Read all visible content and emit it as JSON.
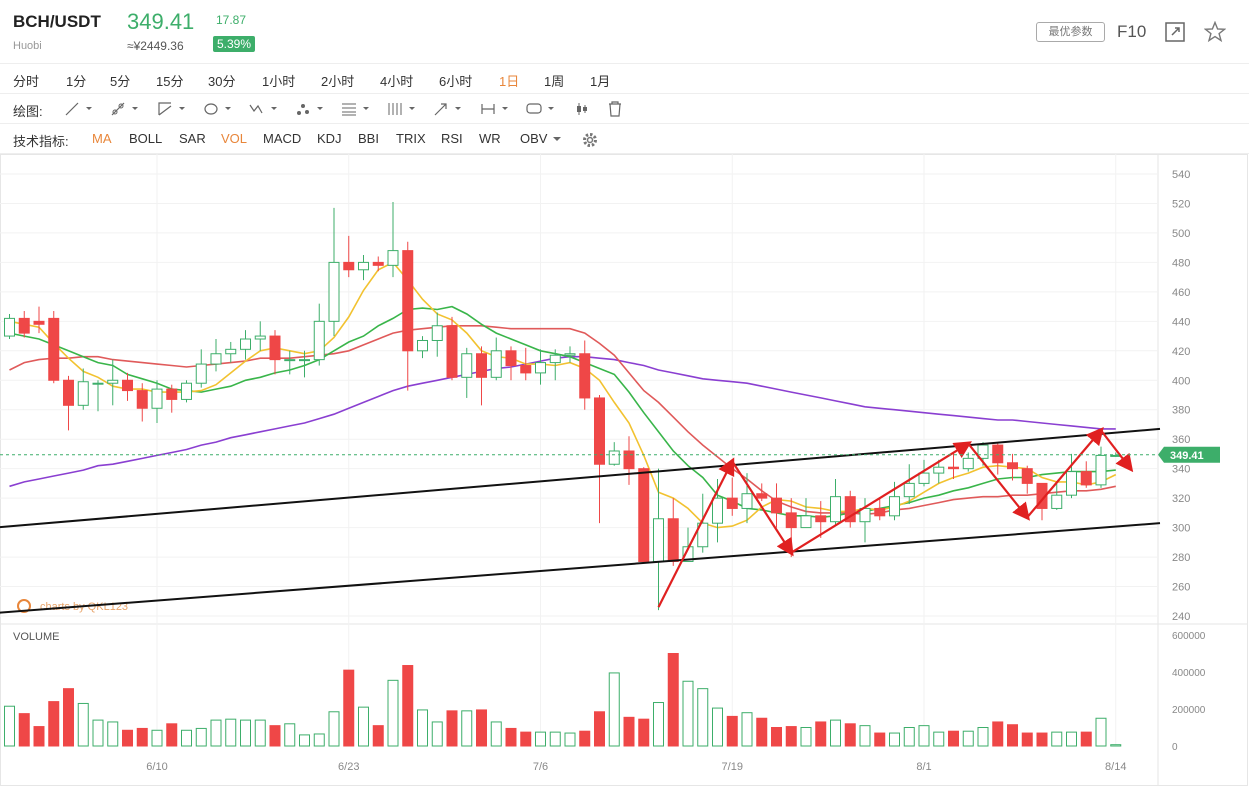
{
  "header": {
    "pair": "BCH/USDT",
    "exchange": "Huobi",
    "price": "349.41",
    "change": "17.87",
    "cny_price": "≈¥2449.36",
    "change_pct": "5.39%",
    "best_params_label": "最优参数",
    "f10_label": "F10",
    "colors": {
      "up": "#3dae6a",
      "down": "#ef4747"
    }
  },
  "intervals": {
    "items": [
      "分时",
      "1分",
      "5分",
      "15分",
      "30分",
      "1小时",
      "2小时",
      "4小时",
      "6小时",
      "1日",
      "1周",
      "1月"
    ],
    "active": "1日"
  },
  "drawing": {
    "label": "绘图:"
  },
  "indicators": {
    "label": "技术指标:",
    "items": [
      "MA",
      "BOLL",
      "SAR",
      "VOL",
      "MACD",
      "KDJ",
      "BBI",
      "TRIX",
      "RSI",
      "WR",
      "OBV"
    ],
    "active": [
      "MA",
      "VOL"
    ]
  },
  "chart_data": {
    "type": "candlestick",
    "title": "BCH/USDT 1日",
    "watermark": "charts by QKL123",
    "y_ticks": [
      240,
      260,
      280,
      300,
      320,
      340,
      360,
      380,
      400,
      420,
      440,
      460,
      480,
      500,
      520,
      540
    ],
    "ylim": [
      232,
      548
    ],
    "x_ticks": [
      {
        "label": "6/10",
        "index": 10
      },
      {
        "label": "6/23",
        "index": 23
      },
      {
        "label": "7/6",
        "index": 36
      },
      {
        "label": "7/19",
        "index": 49
      },
      {
        "label": "8/1",
        "index": 62
      },
      {
        "label": "8/14",
        "index": 75
      }
    ],
    "current_price_label": "349.41",
    "current_price": 349.41,
    "candles": [
      [
        430,
        442,
        445,
        428
      ],
      [
        442,
        432,
        447,
        429
      ],
      [
        440,
        438,
        450,
        432
      ],
      [
        442,
        400,
        447,
        398
      ],
      [
        400,
        383,
        403,
        366
      ],
      [
        383,
        399,
        408,
        380
      ],
      [
        398,
        398,
        400,
        379
      ],
      [
        398,
        400,
        414,
        383
      ],
      [
        400,
        393,
        405,
        386
      ],
      [
        393,
        381,
        398,
        372
      ],
      [
        381,
        394,
        400,
        371
      ],
      [
        394,
        387,
        397,
        378
      ],
      [
        387,
        398,
        400,
        385
      ],
      [
        398,
        411,
        421,
        395
      ],
      [
        411,
        418,
        428,
        406
      ],
      [
        418,
        421,
        426,
        412
      ],
      [
        421,
        428,
        434,
        414
      ],
      [
        428,
        430,
        440,
        420
      ],
      [
        430,
        414,
        434,
        404
      ],
      [
        414,
        414,
        420,
        404
      ],
      [
        414,
        414,
        420,
        402
      ],
      [
        414,
        440,
        452,
        410
      ],
      [
        440,
        480,
        517,
        430
      ],
      [
        480,
        475,
        498,
        470
      ],
      [
        475,
        480,
        485,
        468
      ],
      [
        480,
        478,
        484,
        474
      ],
      [
        478,
        488,
        521,
        470
      ],
      [
        488,
        420,
        494,
        393
      ],
      [
        420,
        427,
        430,
        415
      ],
      [
        427,
        437,
        446,
        416
      ],
      [
        437,
        402,
        443,
        400
      ],
      [
        402,
        418,
        422,
        388
      ],
      [
        418,
        402,
        423,
        383
      ],
      [
        402,
        420,
        429,
        400
      ],
      [
        420,
        410,
        423,
        400
      ],
      [
        410,
        405,
        422,
        400
      ],
      [
        405,
        412,
        421,
        397
      ],
      [
        412,
        417,
        421,
        400
      ],
      [
        417,
        418,
        423,
        412
      ],
      [
        418,
        388,
        427,
        380
      ],
      [
        388,
        343,
        390,
        303
      ],
      [
        343,
        352,
        358,
        342
      ],
      [
        352,
        340,
        362,
        329
      ],
      [
        340,
        277,
        341,
        277
      ],
      [
        277,
        306,
        340,
        244
      ],
      [
        306,
        277,
        320,
        274
      ],
      [
        277,
        287,
        300,
        283
      ],
      [
        287,
        303,
        323,
        283
      ],
      [
        303,
        320,
        333,
        290
      ],
      [
        320,
        313,
        334,
        308
      ],
      [
        313,
        323,
        337,
        303
      ],
      [
        323,
        320,
        330,
        318
      ],
      [
        320,
        310,
        330,
        300
      ],
      [
        310,
        300,
        320,
        280
      ],
      [
        300,
        308,
        320,
        300
      ],
      [
        308,
        304,
        318,
        293
      ],
      [
        304,
        321,
        333,
        301
      ],
      [
        321,
        304,
        325,
        300
      ],
      [
        304,
        313,
        320,
        290
      ],
      [
        313,
        308,
        320,
        305
      ],
      [
        308,
        321,
        331,
        305
      ],
      [
        321,
        330,
        343,
        316
      ],
      [
        330,
        337,
        346,
        328
      ],
      [
        337,
        341,
        346,
        330
      ],
      [
        341,
        340,
        351,
        333
      ],
      [
        340,
        347,
        351,
        338
      ],
      [
        347,
        356,
        358,
        342
      ],
      [
        356,
        344,
        358,
        336
      ],
      [
        344,
        340,
        350,
        332
      ],
      [
        340,
        330,
        342,
        323
      ],
      [
        330,
        313,
        330,
        305
      ],
      [
        313,
        322,
        330,
        312
      ],
      [
        322,
        338,
        350,
        320
      ],
      [
        338,
        329,
        345,
        327
      ],
      [
        329,
        349,
        355,
        327
      ],
      [
        349,
        349,
        351,
        348
      ]
    ],
    "ma5": [
      440,
      438,
      436,
      425,
      415,
      406,
      402,
      396,
      394,
      394,
      392,
      392,
      392,
      393,
      397,
      405,
      413,
      420,
      422,
      420,
      418,
      420,
      429,
      443,
      461,
      475,
      480,
      468,
      455,
      445,
      441,
      432,
      420,
      416,
      415,
      411,
      411,
      410,
      412,
      408,
      400,
      385,
      371,
      349,
      324,
      320,
      313,
      303,
      300,
      301,
      305,
      314,
      319,
      318,
      314,
      313,
      311,
      311,
      313,
      312,
      314,
      318,
      324,
      330,
      334,
      337,
      341,
      342,
      341,
      340,
      334,
      331,
      331,
      329,
      331,
      336
    ],
    "ma10": [
      432,
      430,
      428,
      424,
      420,
      416,
      412,
      410,
      404,
      401,
      398,
      394,
      393,
      392,
      394,
      396,
      400,
      402,
      405,
      407,
      410,
      414,
      420,
      426,
      430,
      437,
      442,
      448,
      449,
      448,
      450,
      445,
      438,
      432,
      428,
      424,
      420,
      418,
      416,
      412,
      408,
      404,
      392,
      378,
      365,
      352,
      342,
      334,
      322,
      318,
      313,
      312,
      310,
      308,
      308,
      307,
      308,
      310,
      311,
      313,
      315,
      317,
      320,
      322,
      325,
      327,
      330,
      333,
      334,
      334,
      336,
      337,
      338,
      338,
      338,
      339
    ],
    "ma30": [
      407,
      412,
      414,
      415,
      415,
      416,
      416,
      414,
      413,
      412,
      411,
      410,
      409,
      410,
      411,
      412,
      413,
      415,
      415,
      415,
      416,
      417,
      418,
      420,
      424,
      428,
      432,
      434,
      435,
      436,
      437,
      437,
      437,
      436,
      435,
      435,
      435,
      435,
      435,
      432,
      425,
      417,
      405,
      393,
      385,
      375,
      365,
      356,
      348,
      340,
      333,
      325,
      318,
      314,
      311,
      310,
      310,
      310,
      309,
      310,
      312,
      313,
      315,
      317,
      319,
      320,
      321,
      321,
      322,
      322,
      323,
      324,
      325,
      325,
      326,
      328
    ],
    "ma60": [
      328,
      331,
      333,
      335,
      337,
      339,
      342,
      343,
      345,
      347,
      349,
      351,
      353,
      356,
      358,
      361,
      363,
      365,
      367,
      369,
      371,
      374,
      377,
      381,
      385,
      389,
      393,
      396,
      398,
      400,
      402,
      404,
      406,
      408,
      409,
      411,
      413,
      415,
      416,
      416,
      415,
      414,
      412,
      410,
      407,
      405,
      403,
      401,
      400,
      399,
      398,
      396,
      394,
      392,
      390,
      388,
      386,
      384,
      382,
      381,
      380,
      379,
      378,
      377,
      376,
      375,
      374,
      373,
      373,
      372,
      371,
      370,
      369,
      368,
      367,
      367
    ],
    "ma_colors": {
      "ma5": "#f2c230",
      "ma10": "#39b54a",
      "ma30": "#e05a5a",
      "ma60": "#8a3fd1"
    },
    "volume": {
      "label": "VOLUME",
      "ticks": [
        0,
        200000,
        400000,
        600000
      ],
      "values": [
        215000,
        175000,
        105000,
        240000,
        310000,
        230000,
        140000,
        130000,
        85000,
        95000,
        85000,
        120000,
        85000,
        95000,
        140000,
        145000,
        140000,
        140000,
        110000,
        120000,
        60000,
        65000,
        185000,
        410000,
        210000,
        110000,
        355000,
        435000,
        195000,
        130000,
        190000,
        190000,
        195000,
        130000,
        95000,
        75000,
        75000,
        75000,
        70000,
        80000,
        185000,
        395000,
        155000,
        145000,
        235000,
        500000,
        350000,
        310000,
        205000,
        160000,
        180000,
        150000,
        100000,
        105000,
        100000,
        130000,
        140000,
        120000,
        110000,
        70000,
        70000,
        100000,
        110000,
        75000,
        80000,
        80000,
        100000,
        130000,
        115000,
        70000,
        70000,
        75000,
        75000,
        75000,
        150000,
        7000
      ]
    },
    "trend_lines": [
      {
        "from": [
          -1,
          300
        ],
        "to": [
          78,
          367
        ]
      },
      {
        "from": [
          -1,
          242
        ],
        "to": [
          78,
          303
        ]
      }
    ],
    "annotation_path": [
      [
        44,
        246
      ],
      [
        49,
        345
      ],
      [
        53,
        283
      ],
      [
        65,
        357
      ],
      [
        69,
        307
      ],
      [
        74,
        366
      ],
      [
        76,
        340
      ]
    ]
  }
}
